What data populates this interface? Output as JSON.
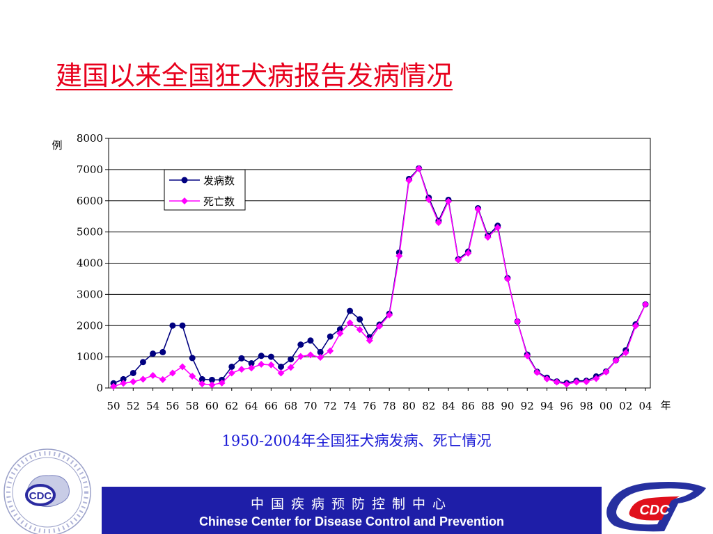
{
  "title": "建国以来全国狂犬病报告发病情况",
  "caption": "1950-2004年全国狂犬病发病、死亡情况",
  "footer": {
    "cn": "中国疾病预防控制中心",
    "en": "Chinese Center for Disease Control and Prevention"
  },
  "logos": {
    "left_text": "CDC",
    "right_text": "CDC"
  },
  "colors": {
    "title": "#e8001c",
    "caption": "#1a1ad6",
    "cases": "#000080",
    "deaths": "#ff00ff",
    "footer": "#1e1ea8"
  },
  "chart_data": {
    "type": "line",
    "ylabel": "例",
    "xlabel": "年",
    "ylim": [
      0,
      8000
    ],
    "yticks": [
      0,
      1000,
      2000,
      3000,
      4000,
      5000,
      6000,
      7000,
      8000
    ],
    "xtick_labels": [
      "50",
      "52",
      "54",
      "56",
      "58",
      "60",
      "62",
      "64",
      "66",
      "68",
      "70",
      "72",
      "74",
      "76",
      "78",
      "80",
      "82",
      "84",
      "86",
      "88",
      "90",
      "92",
      "94",
      "96",
      "98",
      "00",
      "02",
      "04"
    ],
    "x": [
      1950,
      1951,
      1952,
      1953,
      1954,
      1955,
      1956,
      1957,
      1958,
      1959,
      1960,
      1961,
      1962,
      1963,
      1964,
      1965,
      1966,
      1967,
      1968,
      1969,
      1970,
      1971,
      1972,
      1973,
      1974,
      1975,
      1976,
      1977,
      1978,
      1979,
      1980,
      1981,
      1982,
      1983,
      1984,
      1985,
      1986,
      1987,
      1988,
      1989,
      1990,
      1991,
      1992,
      1993,
      1994,
      1995,
      1996,
      1997,
      1998,
      1999,
      2000,
      2001,
      2002,
      2003,
      2004
    ],
    "grid": "horizontal",
    "legend_position": "top-left",
    "series": [
      {
        "name": "发病数",
        "marker": "circle",
        "values": [
          150,
          280,
          480,
          830,
          1100,
          1150,
          2000,
          2000,
          960,
          280,
          260,
          260,
          680,
          950,
          790,
          1030,
          1000,
          680,
          920,
          1390,
          1520,
          1150,
          1650,
          1880,
          2470,
          2200,
          1630,
          2030,
          2380,
          4340,
          6700,
          7040,
          6100,
          5360,
          6030,
          4130,
          4370,
          5760,
          4880,
          5200,
          3520,
          2130,
          1070,
          520,
          330,
          210,
          160,
          230,
          230,
          370,
          530,
          890,
          1210,
          2040,
          2680
        ]
      },
      {
        "name": "死亡数",
        "marker": "diamond",
        "values": [
          50,
          150,
          200,
          280,
          400,
          270,
          480,
          680,
          380,
          130,
          100,
          160,
          480,
          600,
          640,
          760,
          740,
          480,
          660,
          1010,
          1060,
          980,
          1190,
          1750,
          2090,
          1870,
          1520,
          1980,
          2340,
          4230,
          6650,
          7030,
          6040,
          5300,
          5980,
          4100,
          4320,
          5730,
          4830,
          5140,
          3500,
          2130,
          1030,
          500,
          290,
          190,
          120,
          190,
          200,
          300,
          510,
          880,
          1130,
          1990,
          2680
        ]
      }
    ]
  }
}
